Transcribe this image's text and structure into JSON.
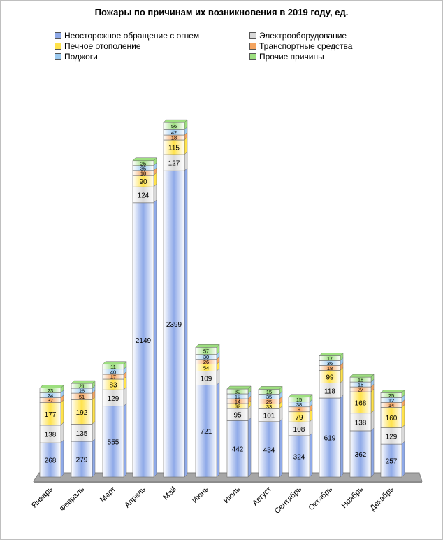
{
  "chart_data": {
    "type": "bar",
    "stacked": true,
    "title": "Пожары по причинам их возникновения в 2019 году, ед.",
    "categories": [
      "Январь",
      "Февраль",
      "Март",
      "Апрель",
      "Май",
      "Июнь",
      "Июль",
      "Август",
      "Сентябрь",
      "Октябрь",
      "Ноябрь",
      "Декабрь"
    ],
    "series": [
      {
        "name": "Неосторожное обращение с огнем",
        "color": "#8ea9e8",
        "values": [
          268,
          279,
          555,
          2149,
          2399,
          721,
          442,
          434,
          324,
          619,
          362,
          257
        ]
      },
      {
        "name": "Электрооборудование",
        "color": "#d9d9d9",
        "values": [
          138,
          135,
          129,
          124,
          127,
          109,
          95,
          101,
          108,
          118,
          138,
          129
        ]
      },
      {
        "name": "Печное отополение",
        "color": "#ffe24a",
        "values": [
          177,
          192,
          83,
          90,
          115,
          54,
          32,
          33,
          79,
          99,
          168,
          160
        ]
      },
      {
        "name": "Транспортные средства",
        "color": "#f4a460",
        "values": [
          37,
          51,
          17,
          18,
          18,
          26,
          14,
          25,
          9,
          18,
          27,
          14
        ]
      },
      {
        "name": "Поджоги",
        "color": "#9ccaf0",
        "values": [
          24,
          26,
          40,
          35,
          42,
          30,
          19,
          35,
          38,
          36,
          15,
          12
        ]
      },
      {
        "name": "Прочие причины",
        "color": "#9ddf7f",
        "values": [
          23,
          21,
          11,
          25,
          56,
          57,
          30,
          15,
          15,
          17,
          18,
          25
        ]
      }
    ],
    "legend_position": "top",
    "grid": false
  }
}
